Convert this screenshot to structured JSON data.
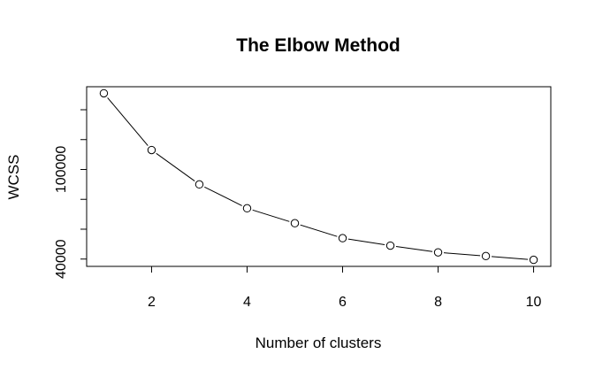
{
  "chart_data": {
    "type": "line",
    "title": "The Elbow Method",
    "xlabel": "Number of clusters",
    "ylabel": "WCSS",
    "x": [
      1,
      2,
      3,
      4,
      5,
      6,
      7,
      8,
      9,
      10
    ],
    "series": [
      {
        "values": [
          151000,
          113000,
          90000,
          74000,
          64000,
          54000,
          49000,
          44500,
          42000,
          39500
        ],
        "marker": "open-circle",
        "line_style": "solid"
      }
    ],
    "x_ticks": [
      2,
      4,
      6,
      8,
      10
    ],
    "x_tick_labels": [
      "2",
      "4",
      "6",
      "8",
      "10"
    ],
    "y_ticks": [
      40000,
      60000,
      80000,
      100000,
      120000,
      140000
    ],
    "y_tick_labels": [
      "40000",
      "",
      "",
      "100000",
      "",
      ""
    ],
    "xlim": [
      0.64,
      10.36
    ],
    "ylim": [
      35100,
      155400
    ],
    "grid": false,
    "legend": "none"
  }
}
